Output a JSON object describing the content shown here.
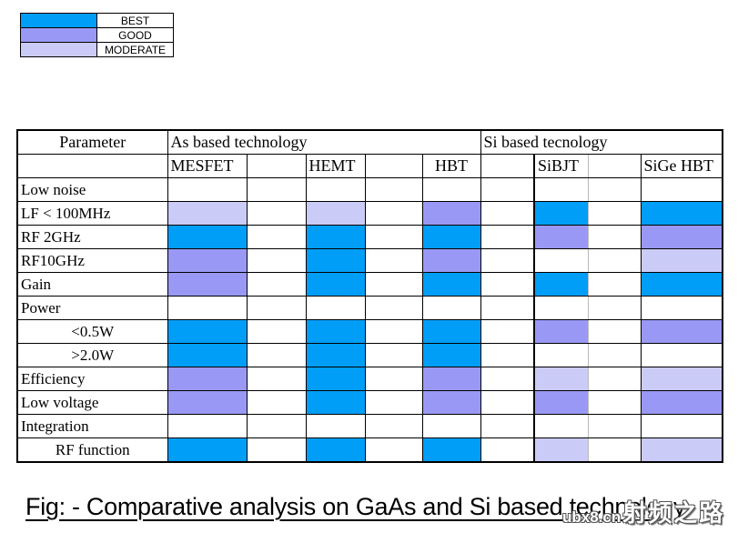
{
  "colors": {
    "best": "#009EF7",
    "good": "#9999F5",
    "moderate": "#CBCBF7",
    "grid_light": "#b9b9b9"
  },
  "legend": {
    "items": [
      {
        "label": "BEST",
        "state": "best"
      },
      {
        "label": "GOOD",
        "state": "good"
      },
      {
        "label": "MODERATE",
        "state": "moderate"
      }
    ]
  },
  "table": {
    "header_row1": {
      "parameter": "Parameter",
      "gaas_section": "As based technology",
      "si_section": "Si based tecnology"
    },
    "device_columns": [
      "MESFET",
      "HEMT",
      "HBT",
      "SiBJT",
      "SiGe HBT"
    ],
    "rows": [
      {
        "label": "Low noise",
        "align": "left",
        "cells": [
          "",
          "",
          "",
          "",
          ""
        ]
      },
      {
        "label": "LF < 100MHz",
        "align": "left",
        "cells": [
          "moderate",
          "moderate",
          "good",
          "best",
          "best"
        ]
      },
      {
        "label": "RF 2GHz",
        "align": "left",
        "cells": [
          "best",
          "best",
          "best",
          "good",
          "good"
        ]
      },
      {
        "label": "RF10GHz",
        "align": "left",
        "cells": [
          "good",
          "best",
          "good",
          "",
          "moderate"
        ]
      },
      {
        "label": "Gain",
        "align": "left",
        "cells": [
          "good",
          "best",
          "best",
          "best",
          "best"
        ]
      },
      {
        "label": "Power",
        "align": "left",
        "cells": [
          "",
          "",
          "",
          "",
          ""
        ]
      },
      {
        "label": "<0.5W",
        "align": "center",
        "cells": [
          "best",
          "best",
          "best",
          "good",
          "good"
        ]
      },
      {
        "label": ">2.0W",
        "align": "center",
        "cells": [
          "best",
          "best",
          "best",
          "",
          ""
        ]
      },
      {
        "label": "Efficiency",
        "align": "left",
        "cells": [
          "good",
          "best",
          "good",
          "moderate",
          "moderate"
        ]
      },
      {
        "label": "Low voltage",
        "align": "left",
        "cells": [
          "good",
          "best",
          "good",
          "good",
          "good"
        ]
      },
      {
        "label": "Integration",
        "align": "left",
        "cells": [
          "",
          "",
          "",
          "",
          ""
        ]
      },
      {
        "label": "RF function",
        "align": "center",
        "cells": [
          "best",
          "best",
          "best",
          "moderate",
          "moderate"
        ]
      }
    ]
  },
  "caption": "Fig: - Comparative analysis on GaAs and Si based technology",
  "watermark": {
    "site": "ubx8.cn",
    "text": "射频之路"
  }
}
